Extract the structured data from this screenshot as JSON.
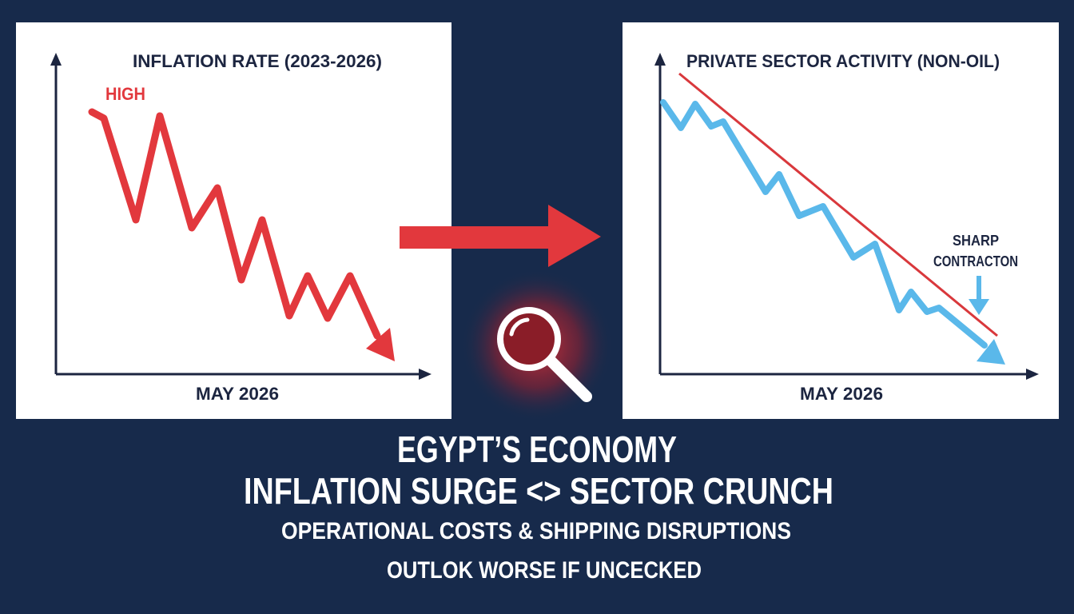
{
  "left_panel": {
    "title": "INFLATION RATE (2023-2026)",
    "label": "HIGH",
    "x_label": "MAY 2026"
  },
  "right_panel": {
    "title": "PRIVATE SECTOR ACTIVITY (NON-OIL)",
    "annotation": [
      "SHARP",
      "CONTRACTON"
    ],
    "x_label": "MAY 2026"
  },
  "headline": [
    "EGYPT’S ECONOMY",
    "INFLATION SURGE <> SECTOR CRUNCH"
  ],
  "subtitle": [
    "OPERATIONAL COSTS & SHIPPING DISRUPTIONS",
    "OUTLOK WORSE IF UNCECKED"
  ]
}
